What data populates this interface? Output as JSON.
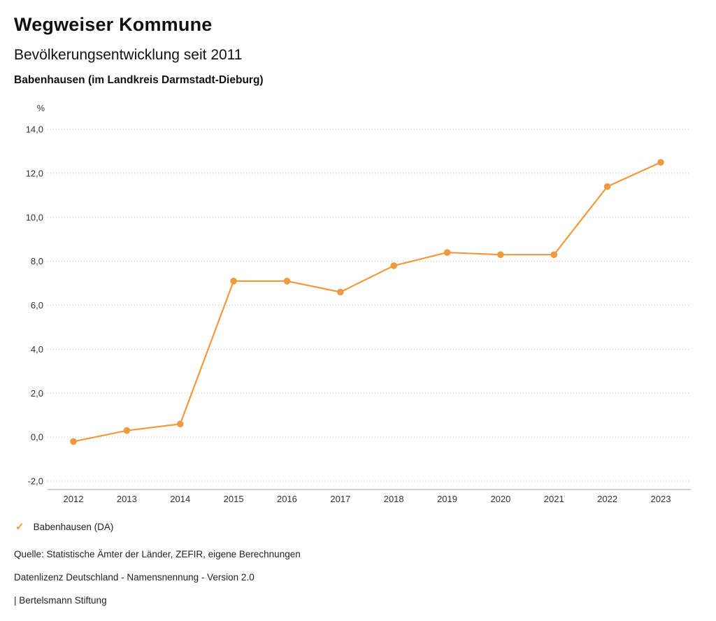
{
  "header": {
    "title": "Wegweiser Kommune",
    "subtitle": "Bevölkerungsentwicklung seit 2011",
    "location": "Babenhausen (im Landkreis Darmstadt-Dieburg)"
  },
  "chart_data": {
    "type": "line",
    "title": "Bevölkerungsentwicklung seit 2011",
    "subtitle": "Babenhausen (im Landkreis Darmstadt-Dieburg)",
    "unit_label": "%",
    "x": [
      2012,
      2013,
      2014,
      2015,
      2016,
      2017,
      2018,
      2019,
      2020,
      2021,
      2022,
      2023
    ],
    "series": [
      {
        "name": "Babenhausen (DA)",
        "color": "#f0993f",
        "values": [
          -0.2,
          0.3,
          0.6,
          7.1,
          7.1,
          6.6,
          7.8,
          8.4,
          8.3,
          8.3,
          11.4,
          12.5
        ]
      }
    ],
    "ylim": [
      -2,
      14
    ],
    "ytick_step": 2,
    "grid": "horizontal-dotted",
    "legend_position": "bottom-left",
    "accent_color": "#f0993f"
  },
  "legend": {
    "items": [
      {
        "label": "Babenhausen (DA)",
        "color": "#f0993f",
        "check_icon": "✓"
      }
    ]
  },
  "footer": {
    "source": "Quelle: Statistische Ämter der Länder, ZEFIR, eigene Berechnungen",
    "license": "Datenlizenz Deutschland - Namensnennung - Version 2.0",
    "publisher": "| Bertelsmann Stiftung"
  }
}
